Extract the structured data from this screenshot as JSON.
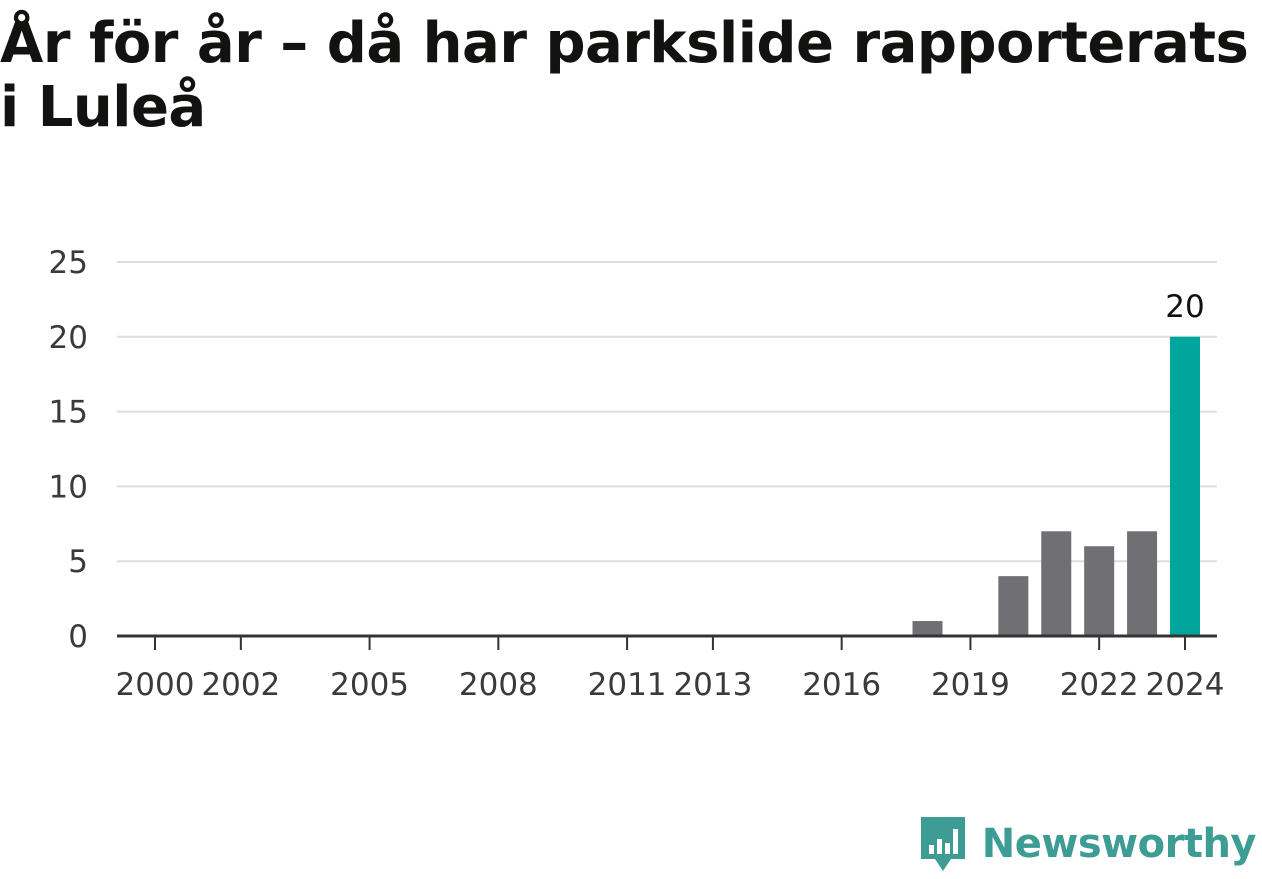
{
  "title": "År för år – då har parkslide rapporterats i Luleå",
  "brand": {
    "name": "Newsworthy",
    "icon": "newsworthy-logo-icon",
    "color": "#3d9c94"
  },
  "colors": {
    "bar": "#6f6f74",
    "highlight": "#00a69c",
    "grid": "#dddddd",
    "axis": "#333333"
  },
  "chart_data": {
    "type": "bar",
    "title": "",
    "xlabel": "",
    "ylabel": "",
    "categories": [
      "2000",
      "2001",
      "2002",
      "2003",
      "2004",
      "2005",
      "2006",
      "2007",
      "2008",
      "2009",
      "2010",
      "2011",
      "2012",
      "2013",
      "2014",
      "2015",
      "2016",
      "2017",
      "2018",
      "2019",
      "2020",
      "2021",
      "2022",
      "2023",
      "2024"
    ],
    "values": [
      0,
      0,
      0,
      0,
      0,
      0,
      0,
      0,
      0,
      0,
      0,
      0,
      0,
      0,
      0,
      0,
      0,
      0,
      1,
      0,
      4,
      7,
      6,
      7,
      20
    ],
    "highlight_category": "2024",
    "data_labels": [
      {
        "category": "2024",
        "label": "20"
      }
    ],
    "x_tick_labels": [
      "2000",
      "2002",
      "2005",
      "2008",
      "2011",
      "2013",
      "2016",
      "2019",
      "2022",
      "2024"
    ],
    "y_ticks": [
      0,
      5,
      10,
      15,
      20,
      25
    ],
    "ylim": [
      0,
      25
    ],
    "grid": true,
    "legend": "none"
  }
}
